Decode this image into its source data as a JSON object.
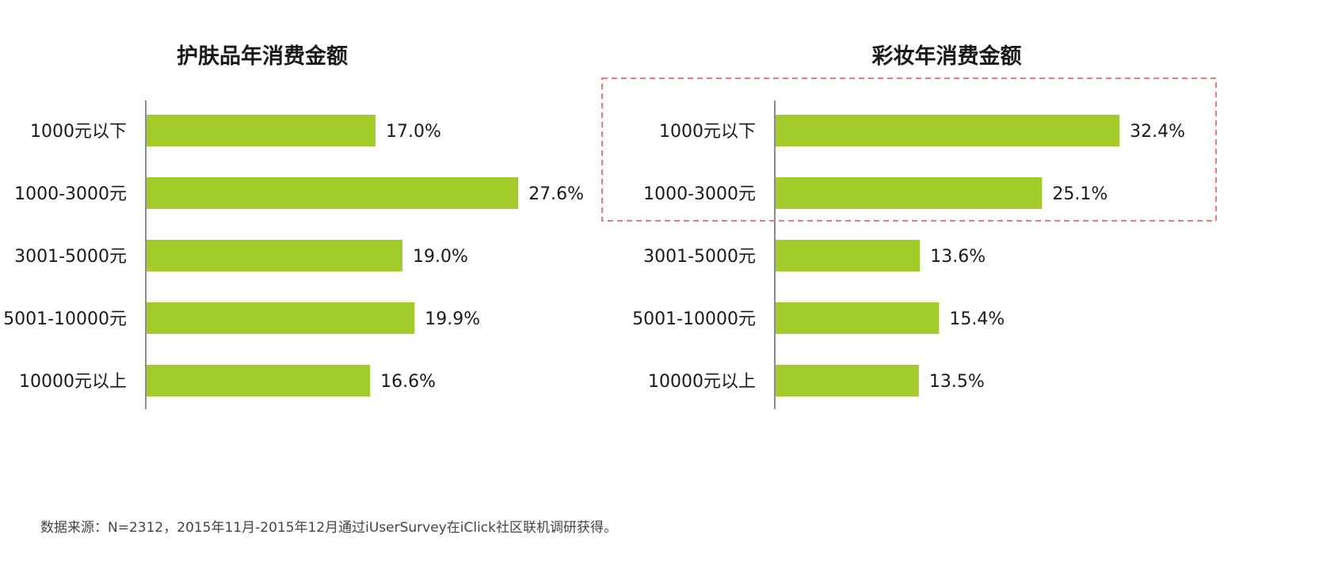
{
  "colors": {
    "bar": "#a3cb29",
    "axis": "#8c8c8c",
    "highlight_border": "#e77b7b"
  },
  "chart_data": [
    {
      "type": "bar",
      "orientation": "horizontal",
      "title": "护肤品年消费金额",
      "categories": [
        "1000元以下",
        "1000-3000元",
        "3001-5000元",
        "5001-10000元",
        "10000元以上"
      ],
      "values": [
        17.0,
        27.6,
        19.0,
        19.9,
        16.6
      ],
      "value_labels": [
        "17.0%",
        "27.6%",
        "19.0%",
        "19.9%",
        "16.6%"
      ],
      "unit": "%",
      "xlim": [
        0,
        30
      ],
      "grid": false,
      "highlight_categories": []
    },
    {
      "type": "bar",
      "orientation": "horizontal",
      "title": "彩妆年消费金额",
      "categories": [
        "1000元以下",
        "1000-3000元",
        "3001-5000元",
        "5001-10000元",
        "10000元以上"
      ],
      "values": [
        32.4,
        25.1,
        13.6,
        15.4,
        13.5
      ],
      "value_labels": [
        "32.4%",
        "25.1%",
        "13.6%",
        "15.4%",
        "13.5%"
      ],
      "unit": "%",
      "xlim": [
        0,
        30
      ],
      "grid": false,
      "highlight_categories": [
        "1000元以下",
        "1000-3000元"
      ]
    }
  ],
  "footer": {
    "source": "数据来源：N=2312，2015年11月-2015年12月通过iUserSurvey在iClick社区联机调研获得。"
  }
}
